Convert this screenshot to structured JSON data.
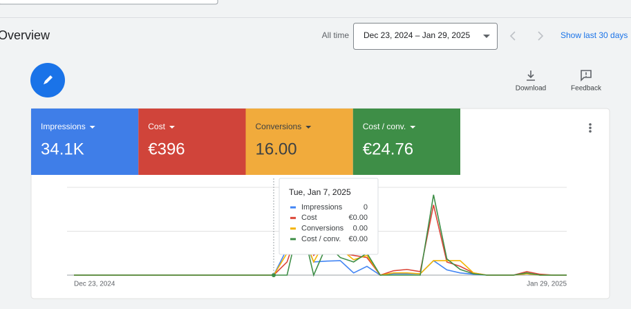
{
  "header": {
    "title": "Overview",
    "range_label": "All time",
    "date_range": "Dec 23, 2024 – Jan 29, 2025",
    "show_last": "Show last 30 days",
    "download": "Download",
    "feedback": "Feedback"
  },
  "scorecards": [
    {
      "value": "34.1K",
      "color": "#3f7ee8",
      "text_color": "#ffffff"
    },
    {
      "value": "€396",
      "color": "#d0443a",
      "text_color": "#ffffff"
    },
    {
      "value": "16.00",
      "color": "#f1ab3c",
      "text_color": "#3c4043"
    },
    {
      "value": "€24.76",
      "color": "#3e8e47",
      "text_color": "#ffffff"
    }
  ],
  "tooltip": {
    "date": "Tue, Jan 7, 2025",
    "values": [
      "0",
      "€0.00",
      "0.00",
      "€0.00"
    ]
  },
  "chart_data": {
    "type": "line",
    "categories": [
      "Dec 23, 2024",
      null,
      null,
      null,
      null,
      null,
      null,
      null,
      null,
      null,
      null,
      null,
      null,
      null,
      null,
      null,
      null,
      null,
      null,
      null,
      null,
      null,
      null,
      null,
      null,
      null,
      null,
      null,
      null,
      null,
      null,
      null,
      null,
      null,
      null,
      null,
      null,
      "Jan 29, 2025"
    ],
    "series": [
      {
        "name": "Impressions",
        "color": "#4285f4",
        "values": [
          0,
          0,
          0,
          0,
          0,
          0,
          0,
          0,
          0,
          0,
          0,
          0,
          0,
          0,
          0,
          0,
          0.6,
          1.0,
          0.3,
          0.32,
          0.33,
          0.05,
          0.2,
          0,
          0.03,
          0.03,
          0.03,
          0.33,
          0.12,
          0.05,
          0.02,
          0,
          0,
          0,
          0.03,
          0,
          0,
          0
        ]
      },
      {
        "name": "Cost",
        "color": "#db4437",
        "values": [
          0,
          0,
          0,
          0,
          0,
          0,
          0,
          0,
          0,
          0,
          0,
          0,
          0,
          0,
          0,
          0,
          0.3,
          1.2,
          0.45,
          0.75,
          0.5,
          0.45,
          0.4,
          0,
          0.1,
          0.13,
          0.08,
          1.6,
          0.3,
          0.2,
          0.05,
          0,
          0,
          0,
          0.08,
          0.02,
          0,
          0
        ]
      },
      {
        "name": "Conversions",
        "color": "#f4b400",
        "values": [
          0,
          0,
          0,
          0,
          0,
          0,
          0,
          0,
          0,
          0,
          0,
          0,
          0,
          0,
          0,
          0,
          0.5,
          1.1,
          0.3,
          0.85,
          0.6,
          0.35,
          0.45,
          0,
          0.05,
          0.05,
          0.03,
          0.33,
          0.33,
          0.33,
          0.05,
          0,
          0,
          0,
          0.03,
          0,
          0,
          0
        ]
      },
      {
        "name": "Cost / conv.",
        "color": "#3e8e47",
        "values": [
          0,
          0,
          0,
          0,
          0,
          0,
          0,
          0,
          0,
          0,
          0,
          0,
          0,
          0,
          0,
          0,
          0,
          1.3,
          0,
          0.7,
          0.4,
          0.3,
          0.5,
          0,
          0,
          0,
          0,
          1.83,
          0.37,
          0.13,
          0.03,
          0,
          0,
          0,
          0.05,
          0,
          0,
          0
        ]
      }
    ],
    "ylim": [
      0,
      2
    ],
    "gridlines": [
      0,
      1,
      2
    ],
    "grid": true
  }
}
